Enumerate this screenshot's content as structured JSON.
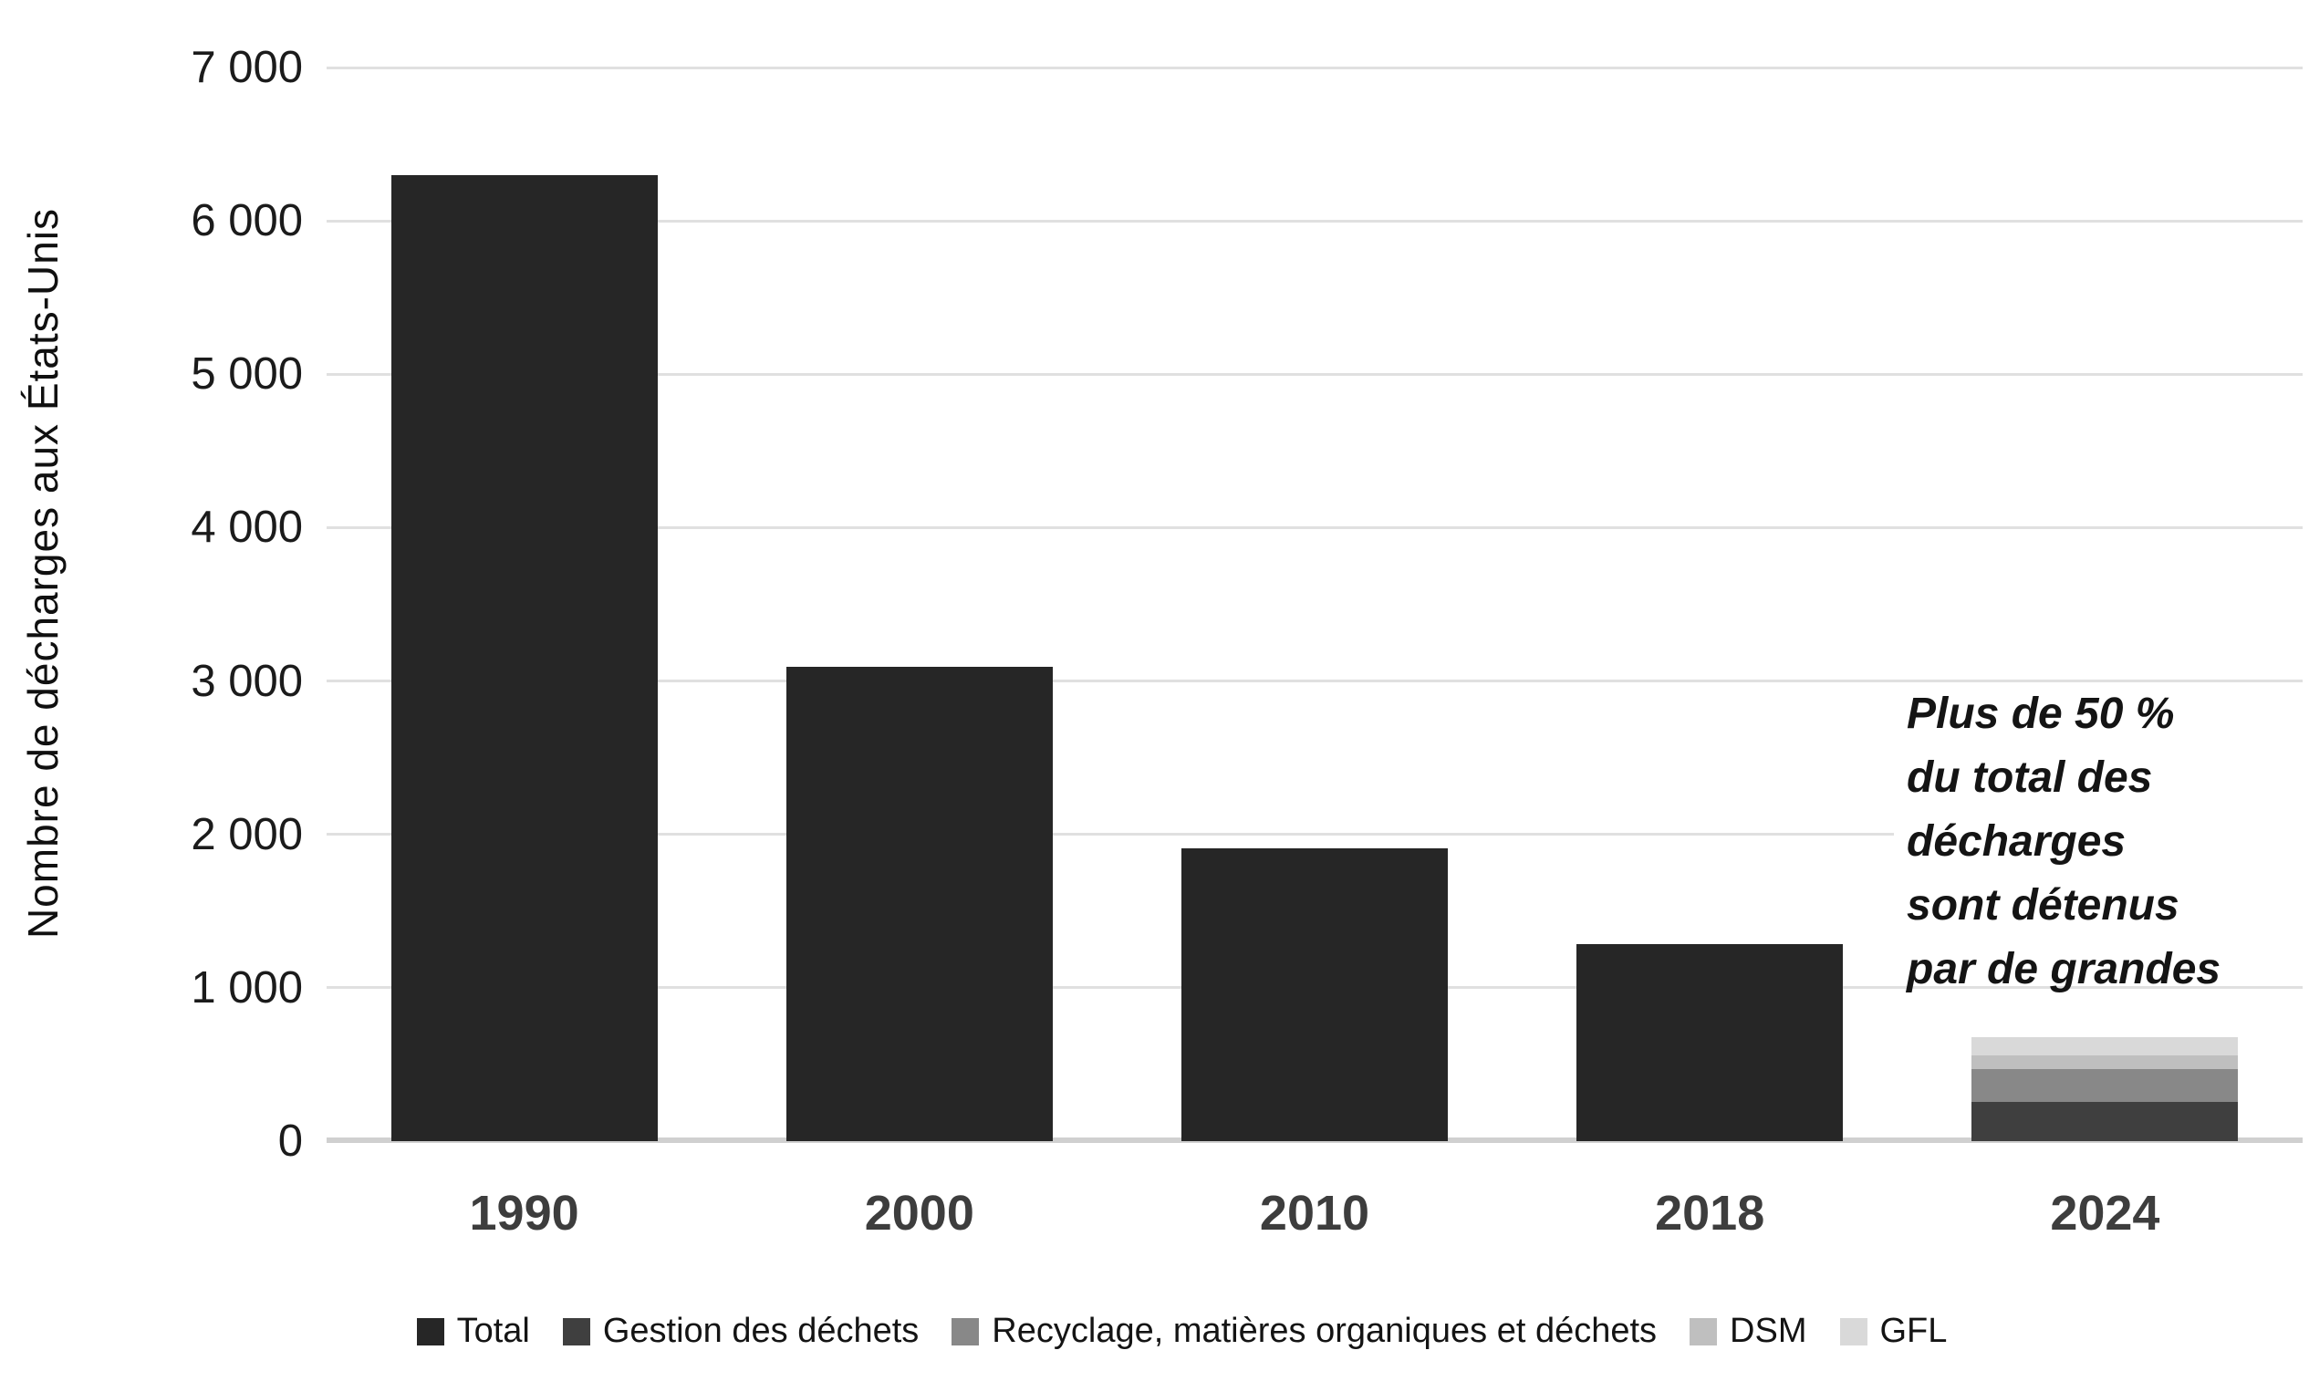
{
  "chart_data": {
    "type": "bar",
    "title": "",
    "xlabel": "",
    "ylabel": "Nombre de décharges aux États-Unis",
    "ylim": [
      0,
      7000
    ],
    "ytick_interval": 1000,
    "ytick_labels": [
      "0",
      "1 000",
      "2 000",
      "3 000",
      "4 000",
      "5 000",
      "6 000",
      "7 000"
    ],
    "categories": [
      "1990",
      "2000",
      "2010",
      "2018",
      "2024"
    ],
    "grid": "horizontal",
    "legend_position": "bottom",
    "series": [
      {
        "name": "Total",
        "color": "#262626",
        "values": [
          6300,
          3090,
          1910,
          1285,
          null
        ]
      },
      {
        "name": "Gestion des déchets",
        "color": "#3f3f3f",
        "values": [
          null,
          null,
          null,
          null,
          255
        ]
      },
      {
        "name": "Recyclage, matières organiques et déchets",
        "color": "#888888",
        "values": [
          null,
          null,
          null,
          null,
          215
        ]
      },
      {
        "name": "DSM",
        "color": "#bfbfbf",
        "values": [
          null,
          null,
          null,
          null,
          90
        ]
      },
      {
        "name": "GFL",
        "color": "#d9d9d9",
        "values": [
          null,
          null,
          null,
          null,
          120
        ]
      }
    ]
  },
  "annotation": {
    "lines": [
      "Plus de 50 %",
      "du total des",
      "décharges",
      "sont détenus",
      "par de grandes"
    ]
  },
  "colors": {
    "background": "#ffffff",
    "gridline": "#e0e0e0",
    "axis_line": "#d0d0d0",
    "ytick_text": "#1b1b1b",
    "xtick_text": "#3d3d3d",
    "legend_text": "#141414",
    "annotation_text": "#141414"
  }
}
